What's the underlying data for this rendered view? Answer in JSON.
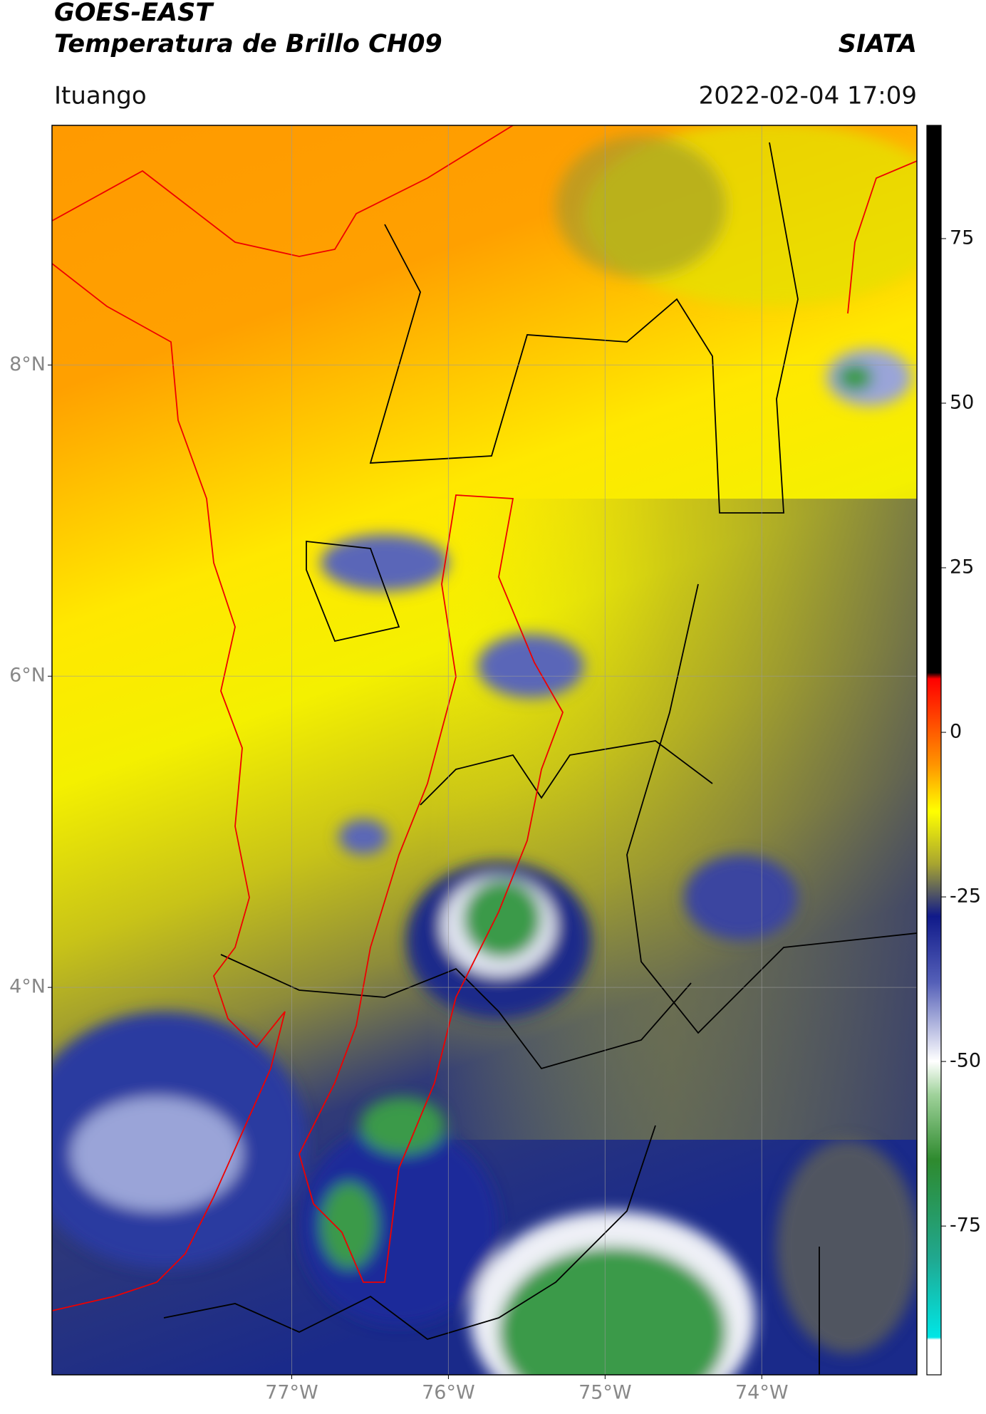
{
  "header": {
    "title": "GOES-EAST",
    "subtitle": "Temperatura de Brillo CH09",
    "source": "SIATA",
    "location": "Ituango",
    "timestamp": "2022-02-04 17:09"
  },
  "map": {
    "xlim": [
      -78.53,
      -73.01
    ],
    "ylim": [
      1.51,
      9.54
    ],
    "grid": true,
    "yticks": [
      {
        "value": 8,
        "label": "8°N"
      },
      {
        "value": 6,
        "label": "6°N"
      },
      {
        "value": 4,
        "label": "4°N"
      }
    ],
    "xticks": [
      {
        "value": -77,
        "label": "77°W"
      },
      {
        "value": -76,
        "label": "76°W"
      },
      {
        "value": -75,
        "label": "75°W"
      },
      {
        "value": -74,
        "label": "74°W"
      }
    ]
  },
  "colorbar": {
    "lim": [
      -97.6,
      92.2
    ],
    "ticks": [
      75,
      50,
      25,
      0,
      -25,
      -50,
      -75
    ]
  }
}
